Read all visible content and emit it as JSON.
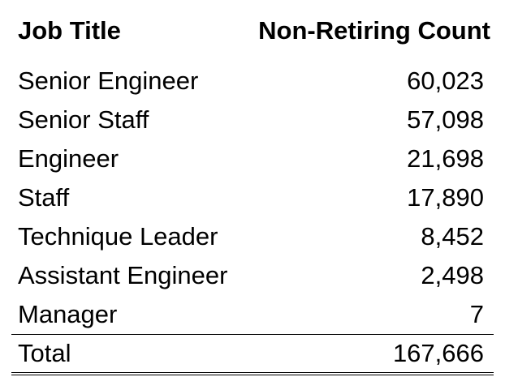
{
  "table": {
    "headers": {
      "job_title": "Job Title",
      "count": "Non-Retiring Count"
    },
    "rows": [
      {
        "title": "Senior Engineer",
        "count": "60,023"
      },
      {
        "title": "Senior Staff",
        "count": "57,098"
      },
      {
        "title": "Engineer",
        "count": "21,698"
      },
      {
        "title": "Staff",
        "count": "17,890"
      },
      {
        "title": "Technique Leader",
        "count": "8,452"
      },
      {
        "title": "Assistant Engineer",
        "count": "2,498"
      },
      {
        "title": "Manager",
        "count": "7"
      }
    ],
    "total": {
      "label": "Total",
      "count": "167,666"
    }
  }
}
